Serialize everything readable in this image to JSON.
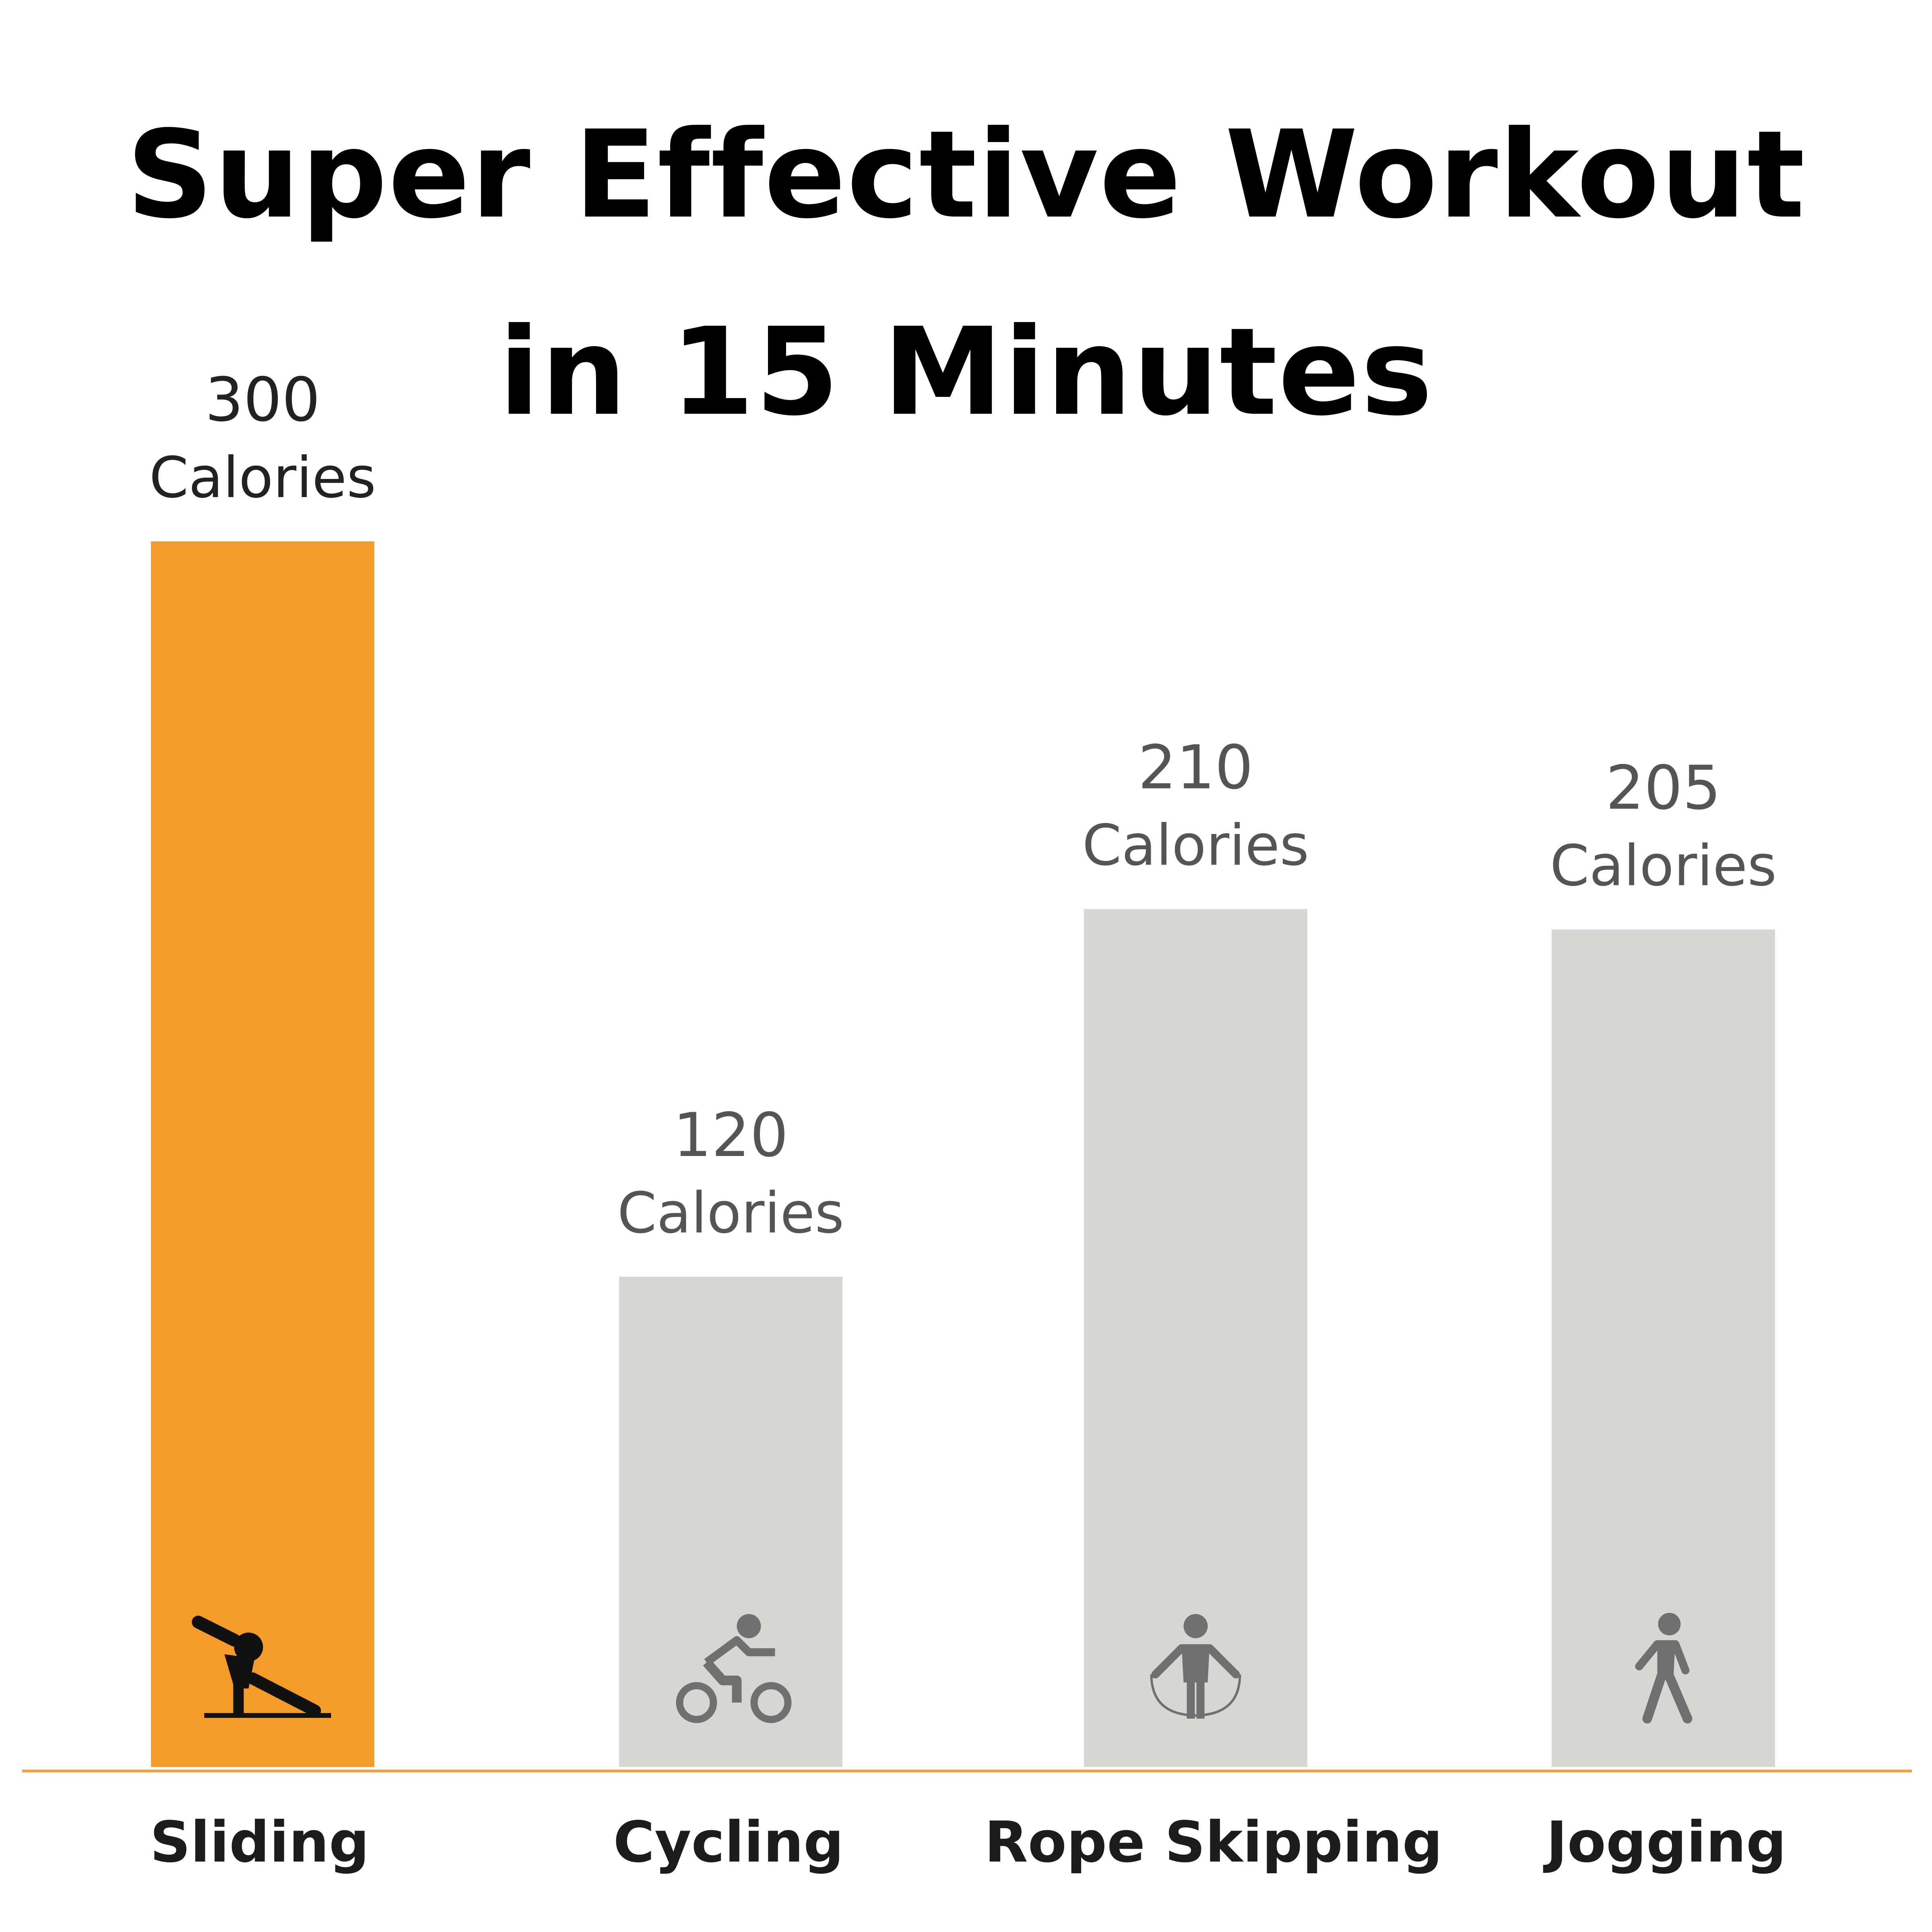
{
  "chart_data": {
    "type": "bar",
    "title_lines": [
      "Super Effective Workout",
      "in 15 Minutes"
    ],
    "categories": [
      "Sliding",
      "Cycling",
      "Rope Skipping",
      "Jogging"
    ],
    "values": [
      300,
      120,
      210,
      205
    ],
    "unit_label": "Calories",
    "icons": [
      "sliding-icon",
      "cycling-icon",
      "rope-skipping-icon",
      "jogging-icon"
    ],
    "ylim": [
      0,
      300
    ],
    "grid": false,
    "legend": "none",
    "colors": {
      "highlight_bar": "#F49B2A",
      "other_bar": "#D7D6D3",
      "baseline": "#F0A040",
      "highlight_icon": "#111111",
      "other_icon": "#707070",
      "highlight_value_text": "#222222",
      "other_value_text": "#555555",
      "category_text": "#1c1c1c"
    }
  }
}
